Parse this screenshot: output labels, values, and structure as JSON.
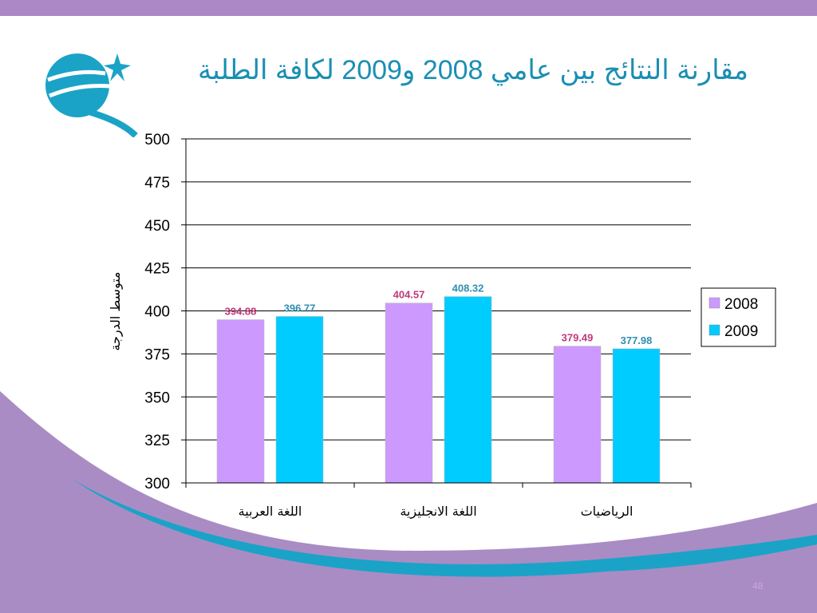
{
  "slide": {
    "title": "مقارنة النتائج بين عامي 2008 و2009 لكافة الطلبة",
    "page_number": "48",
    "colors": {
      "top_band": "#ad88c6",
      "wave_purple": "#a98cc4",
      "wave_teal": "#1aa3c7"
    }
  },
  "chart_data": {
    "type": "bar",
    "categories": [
      "اللغة العربية",
      "اللغة الانجليزية",
      "الرياضيات"
    ],
    "series": [
      {
        "name": "2008",
        "values": [
          394.88,
          404.57,
          379.49
        ],
        "labels": [
          "394.88",
          "404.57",
          "379.49"
        ],
        "color": "#cc99ff",
        "label_color": "#c0397c"
      },
      {
        "name": "2009",
        "values": [
          396.77,
          408.32,
          377.98
        ],
        "labels": [
          "396.77",
          "408.32",
          "377.98"
        ],
        "color": "#00ccff",
        "label_color": "#2e8fb0"
      }
    ],
    "ylabel": "متوسط الدرجة",
    "ylim": [
      300,
      500
    ],
    "yticks": [
      300,
      325,
      350,
      375,
      400,
      425,
      450,
      475,
      500
    ],
    "grid": true,
    "legend": "right"
  }
}
